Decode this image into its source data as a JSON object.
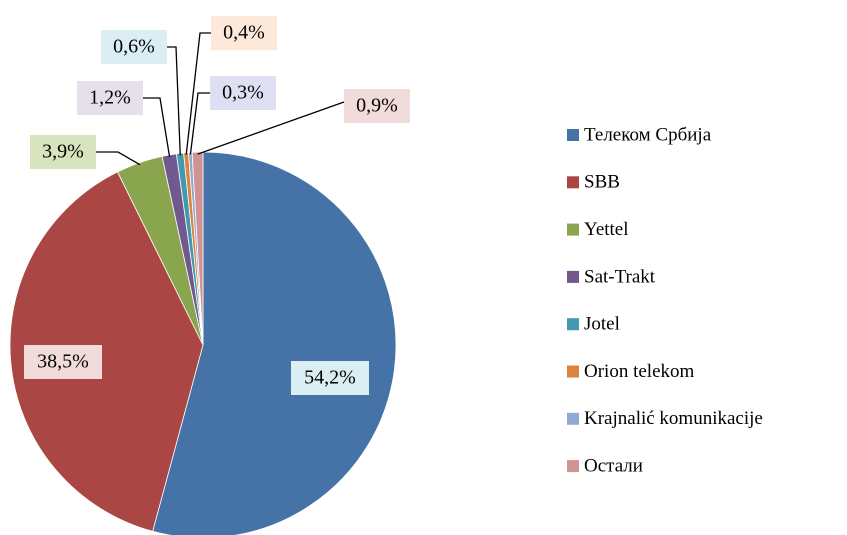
{
  "chart_data": {
    "type": "pie",
    "categories": [
      "Телеком Србија",
      "SBB",
      "Yettel",
      "Sat-Trakt",
      "Jotel",
      "Orion telekom",
      "Krajnalić komunikacije",
      "Остали"
    ],
    "values": [
      54.2,
      38.5,
      3.9,
      1.2,
      0.6,
      0.4,
      0.3,
      0.9
    ],
    "value_labels": [
      "54,2%",
      "38,5%",
      "3,9%",
      "1,2%",
      "0,6%",
      "0,4%",
      "0,3%",
      "0,9%"
    ],
    "colors": [
      "#4572a7",
      "#aa4643",
      "#89a54e",
      "#71588f",
      "#4198af",
      "#db843d",
      "#93a9cf",
      "#d19392"
    ],
    "legend": "right"
  }
}
